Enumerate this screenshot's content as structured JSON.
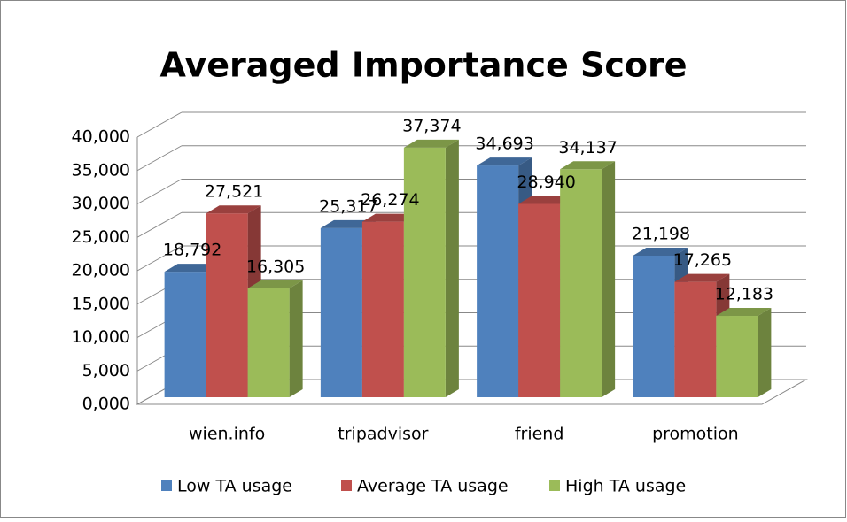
{
  "chart_data": {
    "type": "bar3d",
    "title": "Averaged Importance Score",
    "categories": [
      "wien.info",
      "tripadvisor",
      "friend",
      "promotion"
    ],
    "series": [
      {
        "name": "Low TA usage",
        "color": "#4f81bd",
        "values": [
          18.792,
          25.317,
          34.693,
          21.198
        ],
        "value_labels": [
          "18,792",
          "25,317",
          "34,693",
          "21,198"
        ]
      },
      {
        "name": "Average TA usage",
        "color": "#c0504d",
        "values": [
          27.521,
          26.274,
          28.94,
          17.265
        ],
        "value_labels": [
          "27,521",
          "26,274",
          "28,940",
          "17,265"
        ]
      },
      {
        "name": "High TA usage",
        "color": "#9bbb59",
        "values": [
          16.305,
          37.374,
          34.137,
          12.183
        ],
        "value_labels": [
          "16,305",
          "37,374",
          "34,137",
          "12,183"
        ]
      }
    ],
    "ylim": [
      0,
      40
    ],
    "yticks": [
      {
        "value": 0,
        "label": "0,000"
      },
      {
        "value": 5,
        "label": "5,000"
      },
      {
        "value": 10,
        "label": "10,000"
      },
      {
        "value": 15,
        "label": "15,000"
      },
      {
        "value": 20,
        "label": "20,000"
      },
      {
        "value": 25,
        "label": "25,000"
      },
      {
        "value": 30,
        "label": "30,000"
      },
      {
        "value": 35,
        "label": "35,000"
      },
      {
        "value": 40,
        "label": "40,000"
      }
    ],
    "grid": true,
    "legend": "bottom"
  }
}
